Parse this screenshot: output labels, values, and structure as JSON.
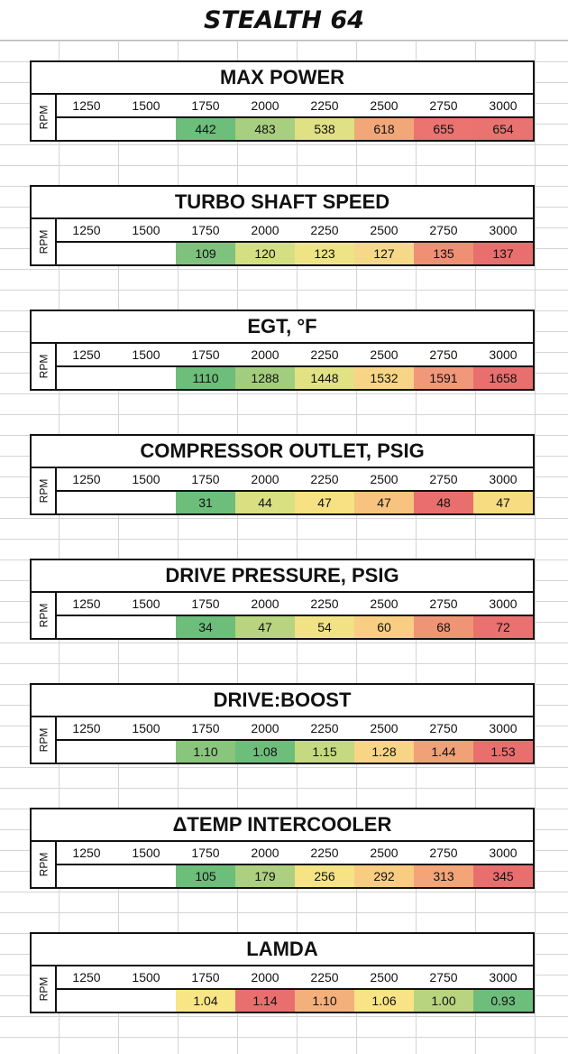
{
  "sheet_title": "STEALTH 64",
  "rpm_label": "RPM",
  "rpm_headers": [
    "1250",
    "1500",
    "1750",
    "2000",
    "2250",
    "2500",
    "2750",
    "3000"
  ],
  "panels": [
    {
      "title": "MAX POWER",
      "values": [
        "",
        "",
        "442",
        "483",
        "538",
        "618",
        "655",
        "654"
      ],
      "colors": [
        "#ffffff",
        "#ffffff",
        "#6dbd7b",
        "#a8cf7f",
        "#e0e084",
        "#f2a778",
        "#eb7370",
        "#e97370"
      ]
    },
    {
      "title": "TURBO SHAFT SPEED",
      "values": [
        "",
        "",
        "109",
        "120",
        "123",
        "127",
        "135",
        "137"
      ],
      "colors": [
        "#ffffff",
        "#ffffff",
        "#7fc27e",
        "#d4df82",
        "#eee485",
        "#f6d988",
        "#ef8f73",
        "#e86f6d"
      ]
    },
    {
      "title": "EGT, °F",
      "values": [
        "",
        "",
        "1110",
        "1288",
        "1448",
        "1532",
        "1591",
        "1658"
      ],
      "colors": [
        "#ffffff",
        "#ffffff",
        "#6dbd7b",
        "#a3cd7e",
        "#e1e283",
        "#f8d586",
        "#f1977a",
        "#e96f6e"
      ]
    },
    {
      "title": "COMPRESSOR OUTLET, PSIG",
      "values": [
        "",
        "",
        "31",
        "44",
        "47",
        "47",
        "48",
        "47"
      ],
      "colors": [
        "#ffffff",
        "#ffffff",
        "#6dbd7b",
        "#d8e082",
        "#f7e183",
        "#f7c37e",
        "#e86f6d",
        "#f8dc81"
      ]
    },
    {
      "title": "DRIVE PRESSURE, PSIG",
      "values": [
        "",
        "",
        "34",
        "47",
        "54",
        "60",
        "68",
        "72"
      ],
      "colors": [
        "#ffffff",
        "#ffffff",
        "#6dbd7b",
        "#b9d47f",
        "#f1e284",
        "#f8ce82",
        "#f09476",
        "#ea716f"
      ]
    },
    {
      "title": "DRIVE:BOOST",
      "values": [
        "",
        "",
        "1.10",
        "1.08",
        "1.15",
        "1.28",
        "1.44",
        "1.53"
      ],
      "colors": [
        "#ffffff",
        "#ffffff",
        "#8ac57e",
        "#6dbd7b",
        "#c4d980",
        "#f8d485",
        "#f0a177",
        "#e96f6e"
      ]
    },
    {
      "title": "ΔTEMP INTERCOOLER",
      "values": [
        "",
        "",
        "105",
        "179",
        "256",
        "292",
        "313",
        "345"
      ],
      "colors": [
        "#ffffff",
        "#ffffff",
        "#6dbd7b",
        "#acd07f",
        "#f5e384",
        "#f8cd82",
        "#f3a577",
        "#e96f6e"
      ]
    },
    {
      "title": "LAMDA",
      "values": [
        "",
        "",
        "1.04",
        "1.14",
        "1.10",
        "1.06",
        "1.00",
        "0.93"
      ],
      "colors": [
        "#ffffff",
        "#ffffff",
        "#f8e586",
        "#e86f6d",
        "#f4b07b",
        "#f8e485",
        "#b8d47f",
        "#6dbd7b"
      ]
    }
  ]
}
